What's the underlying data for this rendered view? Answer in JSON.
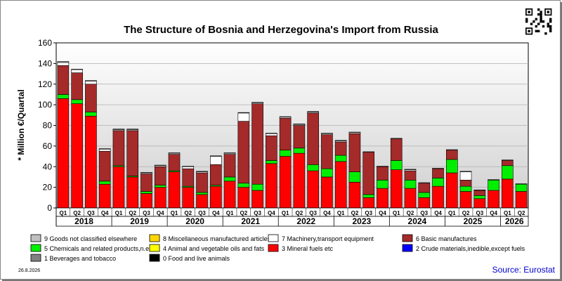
{
  "chart_data": {
    "type": "bar",
    "stacked": true,
    "title": "The Structure of Bosnia and Herzegovina's Import from Russia",
    "ylabel": "* Million €/Quartal",
    "ylim": [
      0,
      160
    ],
    "yticks": [
      0,
      20,
      40,
      60,
      80,
      100,
      120,
      140,
      160
    ],
    "grid": true,
    "legend_position": "bottom",
    "years": [
      "2018",
      "2019",
      "2020",
      "2021",
      "2022",
      "2023",
      "2024",
      "2025",
      "2026"
    ],
    "categories": [
      "Q1",
      "Q2",
      "Q3",
      "Q4",
      "Q1",
      "Q2",
      "Q3",
      "Q4",
      "Q1",
      "Q2",
      "Q3",
      "Q4",
      "Q1",
      "Q2",
      "Q3",
      "Q4",
      "Q1",
      "Q2",
      "Q3",
      "Q4",
      "Q1",
      "Q2",
      "Q3",
      "Q4",
      "Q1",
      "Q2",
      "Q3",
      "Q4",
      "Q1",
      "Q2",
      "Q3",
      "Q4",
      "Q1",
      "Q2"
    ],
    "series": [
      {
        "name": "3 Mineral fuels etc",
        "color": "#ff0000",
        "values": [
          106,
          101,
          89,
          23,
          40,
          30,
          14,
          20,
          35,
          20,
          13,
          21,
          26,
          20,
          17,
          43,
          50,
          53,
          36,
          30,
          45,
          25,
          10,
          19,
          37,
          19,
          10,
          21,
          34,
          16,
          9,
          17,
          28,
          16
        ]
      },
      {
        "name": "5 Chemicals and related products,n.e.s.",
        "color": "#00ee00",
        "values": [
          4,
          4,
          4,
          3,
          1,
          1,
          2,
          2,
          1,
          1,
          2,
          1,
          4,
          4,
          6,
          3,
          6,
          5,
          6,
          8,
          6,
          10,
          3,
          8,
          9,
          8,
          5,
          8,
          13,
          5,
          3,
          10,
          13,
          7
        ]
      },
      {
        "name": "6 Basic manufactures",
        "color": "#a52a2a",
        "values": [
          28,
          26,
          27,
          29,
          34,
          44,
          17,
          18,
          16,
          17,
          19,
          20,
          22,
          60,
          78,
          24,
          31,
          22,
          50,
          33,
          13,
          37,
          41,
          13,
          21,
          9,
          9,
          9,
          9,
          6,
          5,
          0,
          5,
          0
        ]
      },
      {
        "name": "7 Machinery,transport equipment",
        "color": "#ffffff",
        "values": [
          3,
          3,
          3,
          2,
          1,
          1,
          1,
          1,
          1,
          2,
          1,
          8,
          1,
          8,
          1,
          2,
          1,
          1,
          1,
          1,
          1,
          1,
          0,
          0,
          0,
          1,
          0,
          0,
          0,
          8,
          0,
          0,
          0,
          0
        ]
      },
      {
        "name": "9 Goods not classified elsewhere",
        "color": "#c0c0c0",
        "values": [
          1,
          0.5,
          0.5,
          0.5,
          0.5,
          0.5,
          0.5,
          0.5,
          0.5,
          0.5,
          0.5,
          0.5,
          0.5,
          0.5,
          0.5,
          0.5,
          0.5,
          0.5,
          0.5,
          0.5,
          0.5,
          0.5,
          0.5,
          0.5,
          0.5,
          0.5,
          0.5,
          0.5,
          0.5,
          0.5,
          0.5,
          0.5,
          0.5,
          0.5
        ]
      }
    ],
    "legend": [
      {
        "label": "9 Goods not classified elsewhere",
        "color": "#c0c0c0"
      },
      {
        "label": "8 Miscellaneous manufactured articles",
        "color": "#ffd700"
      },
      {
        "label": "7 Machinery,transport equipment",
        "color": "#ffffff"
      },
      {
        "label": "6 Basic manufactures",
        "color": "#a52a2a"
      },
      {
        "label": "5 Chemicals and related products,n.e.s.",
        "color": "#00ee00"
      },
      {
        "label": "4 Animal and vegetable oils and fats",
        "color": "#ffff00"
      },
      {
        "label": "3 Mineral fuels etc",
        "color": "#ff0000"
      },
      {
        "label": "2 Crude materials,inedible,except fuels",
        "color": "#0000ff"
      },
      {
        "label": "1 Beverages and tobacco",
        "color": "#808080"
      },
      {
        "label": "0 Food and live animals",
        "color": "#000000"
      }
    ]
  },
  "date": "26.8.2026",
  "source": "Source: Eurostat"
}
